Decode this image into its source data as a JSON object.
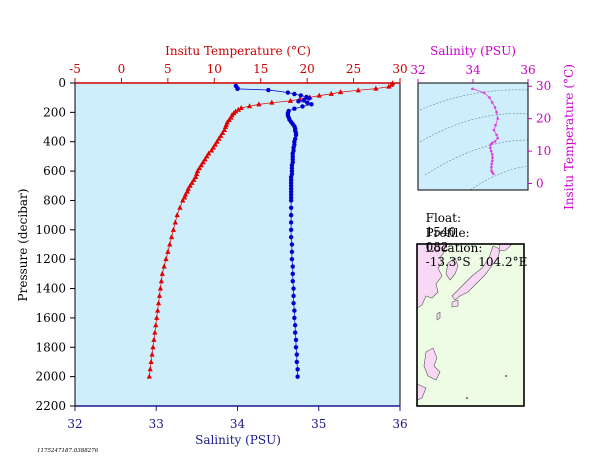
{
  "chart_data": [
    {
      "type": "scatter",
      "title": "",
      "top_axis_label": "Insitu Temperature (°C)",
      "top_axis_ticks": [
        -5,
        0,
        5,
        10,
        15,
        20,
        25,
        30
      ],
      "temp_range": [
        -5,
        30
      ],
      "xlabel": "Salinity (PSU)",
      "bottom_axis_ticks": [
        32,
        33,
        34,
        35,
        36
      ],
      "salinity_range": [
        32,
        36
      ],
      "ylabel": "Pressure (decibar)",
      "y_axis_ticks": [
        0,
        200,
        400,
        600,
        800,
        1000,
        1200,
        1400,
        1600,
        1800,
        2000,
        2200
      ],
      "ylim": [
        0,
        2200
      ],
      "y_inverted": true,
      "colors": {
        "temperature": "#e00000",
        "salinity": "#0000d0",
        "plot_bg": "#cdeefa",
        "top_axis": "#cc0000",
        "bottom_axis": "#1a1a8a"
      },
      "series": [
        {
          "name": "Temperature",
          "axis": "top",
          "marker": "triangle",
          "points": [
            [
              2,
              29.2
            ],
            [
              12,
              29.1
            ],
            [
              25,
              28.8
            ],
            [
              38,
              27.4
            ],
            [
              50,
              25.5
            ],
            [
              62,
              23.6
            ],
            [
              74,
              22.6
            ],
            [
              86,
              21.3
            ],
            [
              98,
              20.3
            ],
            [
              110,
              19.2
            ],
            [
              122,
              18.2
            ],
            [
              134,
              16.2
            ],
            [
              146,
              14.8
            ],
            [
              158,
              13.8
            ],
            [
              170,
              12.9
            ],
            [
              182,
              12.6
            ],
            [
              194,
              12.3
            ],
            [
              206,
              12.1
            ],
            [
              220,
              11.9
            ],
            [
              236,
              11.8
            ],
            [
              252,
              11.6
            ],
            [
              268,
              11.4
            ],
            [
              284,
              11.3
            ],
            [
              300,
              11.2
            ],
            [
              320,
              11.1
            ],
            [
              340,
              10.9
            ],
            [
              360,
              10.7
            ],
            [
              380,
              10.5
            ],
            [
              400,
              10.3
            ],
            [
              420,
              10.1
            ],
            [
              440,
              9.9
            ],
            [
              460,
              9.7
            ],
            [
              480,
              9.4
            ],
            [
              500,
              9.2
            ],
            [
              520,
              9.0
            ],
            [
              540,
              8.8
            ],
            [
              560,
              8.6
            ],
            [
              580,
              8.4
            ],
            [
              600,
              8.2
            ],
            [
              620,
              8.1
            ],
            [
              640,
              8.0
            ],
            [
              660,
              7.8
            ],
            [
              680,
              7.6
            ],
            [
              700,
              7.4
            ],
            [
              720,
              7.2
            ],
            [
              740,
              7.1
            ],
            [
              760,
              6.9
            ],
            [
              780,
              6.8
            ],
            [
              800,
              6.6
            ],
            [
              850,
              6.3
            ],
            [
              900,
              6.0
            ],
            [
              950,
              5.8
            ],
            [
              1000,
              5.6
            ],
            [
              1050,
              5.4
            ],
            [
              1100,
              5.2
            ],
            [
              1150,
              5.0
            ],
            [
              1200,
              4.8
            ],
            [
              1250,
              4.6
            ],
            [
              1300,
              4.4
            ],
            [
              1350,
              4.3
            ],
            [
              1400,
              4.2
            ],
            [
              1450,
              4.1
            ],
            [
              1500,
              4.0
            ],
            [
              1550,
              3.9
            ],
            [
              1600,
              3.8
            ],
            [
              1650,
              3.7
            ],
            [
              1700,
              3.6
            ],
            [
              1750,
              3.5
            ],
            [
              1800,
              3.4
            ],
            [
              1850,
              3.3
            ],
            [
              1900,
              3.2
            ],
            [
              1950,
              3.1
            ],
            [
              2000,
              3.0
            ]
          ]
        },
        {
          "name": "Salinity",
          "axis": "bottom",
          "marker": "circle",
          "points": [
            [
              20,
              33.98
            ],
            [
              35,
              34.0
            ],
            [
              40,
              34.0
            ],
            [
              48,
              34.38
            ],
            [
              65,
              34.62
            ],
            [
              75,
              34.7
            ],
            [
              85,
              34.78
            ],
            [
              95,
              34.85
            ],
            [
              105,
              34.88
            ],
            [
              115,
              34.82
            ],
            [
              125,
              34.75
            ],
            [
              135,
              34.86
            ],
            [
              145,
              34.91
            ],
            [
              160,
              34.8
            ],
            [
              175,
              34.7
            ],
            [
              190,
              34.63
            ],
            [
              205,
              34.62
            ],
            [
              220,
              34.62
            ],
            [
              235,
              34.63
            ],
            [
              250,
              34.64
            ],
            [
              265,
              34.66
            ],
            [
              280,
              34.68
            ],
            [
              295,
              34.7
            ],
            [
              310,
              34.71
            ],
            [
              325,
              34.71
            ],
            [
              340,
              34.72
            ],
            [
              355,
              34.72
            ],
            [
              380,
              34.71
            ],
            [
              400,
              34.7
            ],
            [
              420,
              34.7
            ],
            [
              440,
              34.69
            ],
            [
              460,
              34.69
            ],
            [
              480,
              34.68
            ],
            [
              500,
              34.68
            ],
            [
              520,
              34.68
            ],
            [
              540,
              34.68
            ],
            [
              560,
              34.67
            ],
            [
              580,
              34.67
            ],
            [
              600,
              34.67
            ],
            [
              620,
              34.67
            ],
            [
              640,
              34.66
            ],
            [
              660,
              34.66
            ],
            [
              680,
              34.66
            ],
            [
              700,
              34.66
            ],
            [
              720,
              34.66
            ],
            [
              740,
              34.66
            ],
            [
              760,
              34.66
            ],
            [
              780,
              34.66
            ],
            [
              800,
              34.66
            ],
            [
              850,
              34.66
            ],
            [
              900,
              34.66
            ],
            [
              950,
              34.66
            ],
            [
              1000,
              34.66
            ],
            [
              1050,
              34.66
            ],
            [
              1100,
              34.67
            ],
            [
              1150,
              34.67
            ],
            [
              1200,
              34.67
            ],
            [
              1250,
              34.68
            ],
            [
              1300,
              34.68
            ],
            [
              1350,
              34.68
            ],
            [
              1400,
              34.69
            ],
            [
              1450,
              34.69
            ],
            [
              1500,
              34.69
            ],
            [
              1550,
              34.7
            ],
            [
              1600,
              34.7
            ],
            [
              1650,
              34.71
            ],
            [
              1700,
              34.71
            ],
            [
              1750,
              34.72
            ],
            [
              1800,
              34.72
            ],
            [
              1850,
              34.73
            ],
            [
              1900,
              34.73
            ],
            [
              1950,
              34.74
            ],
            [
              2000,
              34.74
            ]
          ]
        }
      ]
    },
    {
      "type": "scatter",
      "title": "",
      "xlabel": "Salinity (PSU)",
      "x_axis_ticks": [
        32,
        34,
        36
      ],
      "xlim": [
        32,
        36
      ],
      "ylabel": "Insitu Temperature (°C)",
      "y_axis_ticks": [
        0,
        10,
        20,
        30
      ],
      "ylim": [
        -2,
        31
      ],
      "colors": {
        "points": "#e040e0",
        "axis": "#cc00cc",
        "plot_bg": "#cdeefa"
      },
      "density_contours": true,
      "series": [
        {
          "name": "T-S",
          "points": [
            [
              33.98,
              29.2
            ],
            [
              34.4,
              28.0
            ],
            [
              34.6,
              26.5
            ],
            [
              34.7,
              25.0
            ],
            [
              34.8,
              23.5
            ],
            [
              34.86,
              22.0
            ],
            [
              34.9,
              20.0
            ],
            [
              34.82,
              18.0
            ],
            [
              34.76,
              16.5
            ],
            [
              34.86,
              15.0
            ],
            [
              34.9,
              14.0
            ],
            [
              34.8,
              13.0
            ],
            [
              34.7,
              12.5
            ],
            [
              34.64,
              12.0
            ],
            [
              34.63,
              11.0
            ],
            [
              34.66,
              10.0
            ],
            [
              34.7,
              9.0
            ],
            [
              34.71,
              8.0
            ],
            [
              34.7,
              7.0
            ],
            [
              34.68,
              6.0
            ],
            [
              34.67,
              5.0
            ],
            [
              34.67,
              4.0
            ],
            [
              34.7,
              3.5
            ],
            [
              34.74,
              3.0
            ]
          ]
        }
      ]
    }
  ],
  "float_info": {
    "float_label": "Float:",
    "float_value": "1540",
    "profile_label": "Profile:",
    "profile_value": "082",
    "location_label": "Location:",
    "location_value": "-13.3°S  104.2°E"
  },
  "map": {
    "colors": {
      "sea": "#eefce6",
      "land": "#f8d8f5",
      "coast": "#555555"
    }
  },
  "footer_id": "1175247187.0388276"
}
